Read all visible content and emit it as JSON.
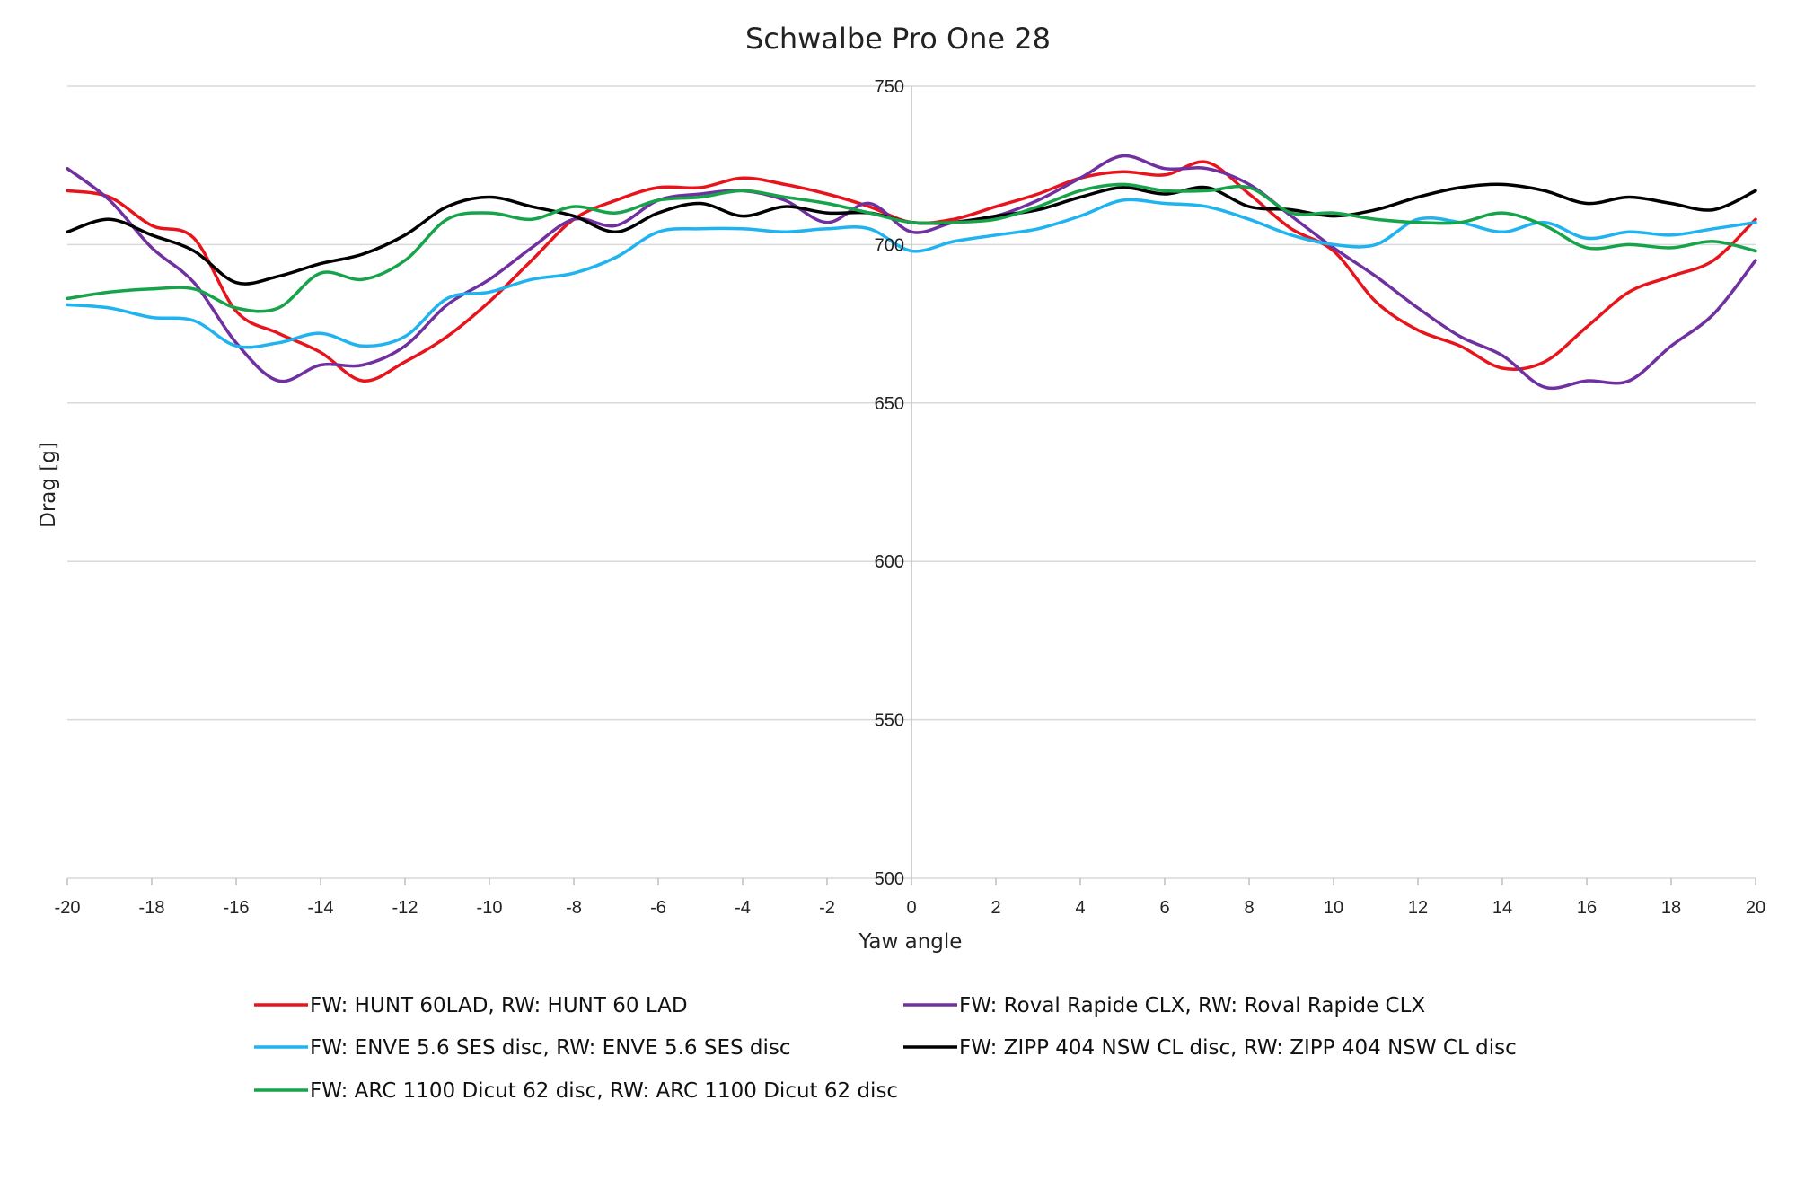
{
  "chart_data": {
    "type": "line",
    "title": "Schwalbe Pro One 28",
    "xlabel": "Yaw angle",
    "ylabel": "Drag [g]",
    "xlim": [
      -20,
      20
    ],
    "ylim": [
      500,
      750
    ],
    "x_ticks": [
      -20,
      -18,
      -16,
      -14,
      -12,
      -10,
      -8,
      -6,
      -4,
      -2,
      0,
      2,
      4,
      6,
      8,
      10,
      12,
      14,
      16,
      18,
      20
    ],
    "y_ticks": [
      500,
      550,
      600,
      650,
      700,
      750
    ],
    "grid": true,
    "legend_position": "bottom",
    "series": [
      {
        "name": "FW: HUNT 60LAD, RW: HUNT 60  LAD",
        "color": "#e8141c",
        "points": [
          [
            -20,
            717
          ],
          [
            -19,
            715
          ],
          [
            -18,
            706
          ],
          [
            -17,
            702
          ],
          [
            -16,
            679
          ],
          [
            -15,
            672
          ],
          [
            -14,
            666
          ],
          [
            -13,
            657
          ],
          [
            -12,
            663
          ],
          [
            -11,
            671
          ],
          [
            -10,
            682
          ],
          [
            -9,
            695
          ],
          [
            -8,
            708
          ],
          [
            -7,
            714
          ],
          [
            -6,
            718
          ],
          [
            -5,
            718
          ],
          [
            -4,
            721
          ],
          [
            -3,
            719
          ],
          [
            -2,
            716
          ],
          [
            -1,
            712
          ],
          [
            0,
            707
          ],
          [
            1,
            708
          ],
          [
            2,
            712
          ],
          [
            3,
            716
          ],
          [
            4,
            721
          ],
          [
            5,
            723
          ],
          [
            6,
            722
          ],
          [
            7,
            726
          ],
          [
            8,
            716
          ],
          [
            9,
            705
          ],
          [
            10,
            698
          ],
          [
            11,
            682
          ],
          [
            12,
            673
          ],
          [
            13,
            668
          ],
          [
            14,
            661
          ],
          [
            15,
            663
          ],
          [
            16,
            674
          ],
          [
            17,
            685
          ],
          [
            18,
            690
          ],
          [
            19,
            695
          ],
          [
            20,
            708
          ]
        ]
      },
      {
        "name": "FW: Roval Rapide CLX, RW: Roval Rapide CLX",
        "color": "#7030a0",
        "points": [
          [
            -20,
            724
          ],
          [
            -19,
            714
          ],
          [
            -18,
            699
          ],
          [
            -17,
            688
          ],
          [
            -16,
            669
          ],
          [
            -15,
            657
          ],
          [
            -14,
            662
          ],
          [
            -13,
            662
          ],
          [
            -12,
            668
          ],
          [
            -11,
            681
          ],
          [
            -10,
            689
          ],
          [
            -9,
            699
          ],
          [
            -8,
            708
          ],
          [
            -7,
            706
          ],
          [
            -6,
            714
          ],
          [
            -5,
            716
          ],
          [
            -4,
            717
          ],
          [
            -3,
            714
          ],
          [
            -2,
            707
          ],
          [
            -1,
            713
          ],
          [
            0,
            704
          ],
          [
            1,
            707
          ],
          [
            2,
            709
          ],
          [
            3,
            714
          ],
          [
            4,
            721
          ],
          [
            5,
            728
          ],
          [
            6,
            724
          ],
          [
            7,
            724
          ],
          [
            8,
            719
          ],
          [
            9,
            709
          ],
          [
            10,
            699
          ],
          [
            11,
            690
          ],
          [
            12,
            680
          ],
          [
            13,
            671
          ],
          [
            14,
            665
          ],
          [
            15,
            655
          ],
          [
            16,
            657
          ],
          [
            17,
            657
          ],
          [
            18,
            668
          ],
          [
            19,
            678
          ],
          [
            20,
            695
          ]
        ]
      },
      {
        "name": "FW: ENVE 5.6 SES disc, RW: ENVE 5.6 SES disc",
        "color": "#1fb3ef",
        "points": [
          [
            -20,
            681
          ],
          [
            -19,
            680
          ],
          [
            -18,
            677
          ],
          [
            -17,
            676
          ],
          [
            -16,
            668
          ],
          [
            -15,
            669
          ],
          [
            -14,
            672
          ],
          [
            -13,
            668
          ],
          [
            -12,
            671
          ],
          [
            -11,
            683
          ],
          [
            -10,
            685
          ],
          [
            -9,
            689
          ],
          [
            -8,
            691
          ],
          [
            -7,
            696
          ],
          [
            -6,
            704
          ],
          [
            -5,
            705
          ],
          [
            -4,
            705
          ],
          [
            -3,
            704
          ],
          [
            -2,
            705
          ],
          [
            -1,
            705
          ],
          [
            0,
            698
          ],
          [
            1,
            701
          ],
          [
            2,
            703
          ],
          [
            3,
            705
          ],
          [
            4,
            709
          ],
          [
            5,
            714
          ],
          [
            6,
            713
          ],
          [
            7,
            712
          ],
          [
            8,
            708
          ],
          [
            9,
            703
          ],
          [
            10,
            700
          ],
          [
            11,
            700
          ],
          [
            12,
            708
          ],
          [
            13,
            707
          ],
          [
            14,
            704
          ],
          [
            15,
            707
          ],
          [
            16,
            702
          ],
          [
            17,
            704
          ],
          [
            18,
            703
          ],
          [
            19,
            705
          ],
          [
            20,
            707
          ]
        ]
      },
      {
        "name": "FW: ZIPP 404 NSW CL disc, RW: ZIPP 404 NSW CL disc",
        "color": "#000000",
        "points": [
          [
            -20,
            704
          ],
          [
            -19,
            708
          ],
          [
            -18,
            703
          ],
          [
            -17,
            698
          ],
          [
            -16,
            688
          ],
          [
            -15,
            690
          ],
          [
            -14,
            694
          ],
          [
            -13,
            697
          ],
          [
            -12,
            703
          ],
          [
            -11,
            712
          ],
          [
            -10,
            715
          ],
          [
            -9,
            712
          ],
          [
            -8,
            709
          ],
          [
            -7,
            704
          ],
          [
            -6,
            710
          ],
          [
            -5,
            713
          ],
          [
            -4,
            709
          ],
          [
            -3,
            712
          ],
          [
            -2,
            710
          ],
          [
            -1,
            710
          ],
          [
            0,
            707
          ],
          [
            1,
            707
          ],
          [
            2,
            709
          ],
          [
            3,
            711
          ],
          [
            4,
            715
          ],
          [
            5,
            718
          ],
          [
            6,
            716
          ],
          [
            7,
            718
          ],
          [
            8,
            712
          ],
          [
            9,
            711
          ],
          [
            10,
            709
          ],
          [
            11,
            711
          ],
          [
            12,
            715
          ],
          [
            13,
            718
          ],
          [
            14,
            719
          ],
          [
            15,
            717
          ],
          [
            16,
            713
          ],
          [
            17,
            715
          ],
          [
            18,
            713
          ],
          [
            19,
            711
          ],
          [
            20,
            717
          ]
        ]
      },
      {
        "name": "FW: ARC 1100 Dicut 62 disc, RW: ARC 1100 Dicut 62 disc",
        "color": "#16a34a",
        "points": [
          [
            -20,
            683
          ],
          [
            -19,
            685
          ],
          [
            -18,
            686
          ],
          [
            -17,
            686
          ],
          [
            -16,
            680
          ],
          [
            -15,
            680
          ],
          [
            -14,
            691
          ],
          [
            -13,
            689
          ],
          [
            -12,
            695
          ],
          [
            -11,
            708
          ],
          [
            -10,
            710
          ],
          [
            -9,
            708
          ],
          [
            -8,
            712
          ],
          [
            -7,
            710
          ],
          [
            -6,
            714
          ],
          [
            -5,
            715
          ],
          [
            -4,
            717
          ],
          [
            -3,
            715
          ],
          [
            -2,
            713
          ],
          [
            -1,
            710
          ],
          [
            0,
            707
          ],
          [
            1,
            707
          ],
          [
            2,
            708
          ],
          [
            3,
            712
          ],
          [
            4,
            717
          ],
          [
            5,
            719
          ],
          [
            6,
            717
          ],
          [
            7,
            717
          ],
          [
            8,
            718
          ],
          [
            9,
            710
          ],
          [
            10,
            710
          ],
          [
            11,
            708
          ],
          [
            12,
            707
          ],
          [
            13,
            707
          ],
          [
            14,
            710
          ],
          [
            15,
            706
          ],
          [
            16,
            699
          ],
          [
            17,
            700
          ],
          [
            18,
            699
          ],
          [
            19,
            701
          ],
          [
            20,
            698
          ]
        ]
      }
    ]
  }
}
